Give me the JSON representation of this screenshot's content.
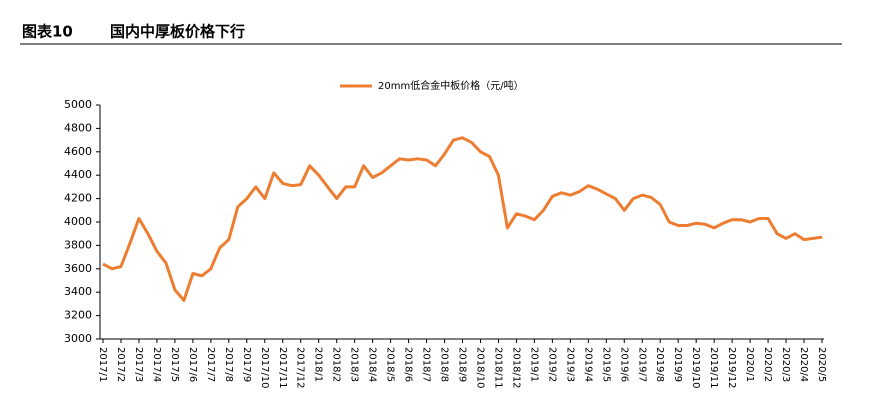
{
  "chart_data": {
    "type": "line",
    "figure_label": "图表10",
    "title": "国内中厚板价格下行",
    "categories": [
      "2017/1",
      null,
      "2017/2",
      null,
      "2017/3",
      null,
      "2017/4",
      null,
      "2017/5",
      null,
      "2017/6",
      null,
      "2017/7",
      null,
      "2017/8",
      null,
      "2017/9",
      null,
      "2017/10",
      null,
      "2017/11",
      null,
      "2017/12",
      null,
      "2018/1",
      null,
      "2018/2",
      null,
      "2018/3",
      null,
      "2018/4",
      null,
      "2018/5",
      null,
      "2018/6",
      null,
      "2018/7",
      null,
      "2018/8",
      null,
      "2018/9",
      null,
      "2018/10",
      null,
      "2018/11",
      null,
      "2018/12",
      null,
      "2019/1",
      null,
      "2019/2",
      null,
      "2019/3",
      null,
      "2019/4",
      null,
      "2019/5",
      null,
      "2019/6",
      null,
      "2019/7",
      null,
      "2019/8",
      null,
      "2019/9",
      null,
      "2019/10",
      null,
      "2019/11",
      null,
      "2019/12",
      null,
      "2020/1",
      null,
      "2020/2",
      null,
      "2020/3",
      null,
      "2020/4",
      null,
      "2020/5"
    ],
    "series": [
      {
        "name": "20mm低合金中板价格（元/吨）",
        "color": "#ed7d31",
        "values": [
          3640,
          3600,
          3620,
          3820,
          4030,
          3900,
          3750,
          3650,
          3420,
          3330,
          3560,
          3540,
          3600,
          3780,
          3850,
          4130,
          4200,
          4300,
          4200,
          4420,
          4330,
          4310,
          4320,
          4480,
          4400,
          4300,
          4200,
          4300,
          4300,
          4480,
          4380,
          4420,
          4480,
          4540,
          4530,
          4540,
          4530,
          4480,
          4580,
          4700,
          4720,
          4680,
          4600,
          4560,
          4400,
          3950,
          4070,
          4050,
          4020,
          4100,
          4220,
          4250,
          4230,
          4260,
          4310,
          4280,
          4240,
          4200,
          4100,
          4200,
          4230,
          4210,
          4150,
          4000,
          3970,
          3970,
          3990,
          3980,
          3950,
          3990,
          4020,
          4020,
          4000,
          4030,
          4030,
          3900,
          3860,
          3900,
          3850,
          3860,
          3870
        ]
      }
    ],
    "ylim": [
      3000,
      5000
    ],
    "yticks": [
      3000,
      3200,
      3400,
      3600,
      3800,
      4000,
      4200,
      4400,
      4600,
      4800,
      5000
    ],
    "legend": "top"
  }
}
